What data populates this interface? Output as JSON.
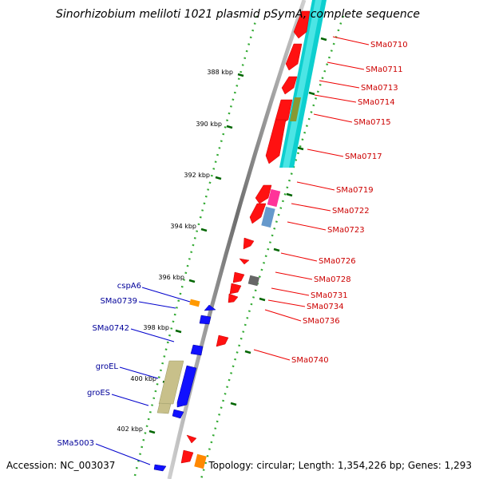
{
  "title": "Sinorhizobium meliloti 1021 plasmid pSymA, complete sequence",
  "footer": {
    "accession": "Accession: NC_003037",
    "topology": "Topology: circular; Length: 1,354,226 bp; Genes: 1,293"
  },
  "colors": {
    "forward_gene": "#ff0000",
    "reverse_gene": "#0000ff",
    "label_forward": "#cc0000",
    "label_reverse": "#000099",
    "tick": "#006600",
    "backbone": "#999999",
    "cyan_feature": "#00cccc",
    "olive_feature": "#cccc88",
    "orange_feature": "#ff9900",
    "magenta_feature": "#ff3399",
    "steelblue_feature": "#6699cc",
    "gray_feature": "#777777",
    "green_feature": "#669933"
  },
  "scale_labels": [
    "388 kbp",
    "390 kbp",
    "392 kbp",
    "394 kbp",
    "396 kbp",
    "398 kbp",
    "400 kbp",
    "402 kbp"
  ],
  "right_labels": [
    "SMa0710",
    "SMa0711",
    "SMa0713",
    "SMa0714",
    "SMa0715",
    "SMa0717",
    "SMa0719",
    "SMa0722",
    "SMa0723",
    "SMa0726",
    "SMa0728",
    "SMa0731",
    "SMa0734",
    "SMa0736",
    "SMa0740"
  ],
  "left_labels": [
    "cspA6",
    "SMa0739",
    "SMa0742",
    "groEL",
    "groES",
    "SMa5003"
  ]
}
